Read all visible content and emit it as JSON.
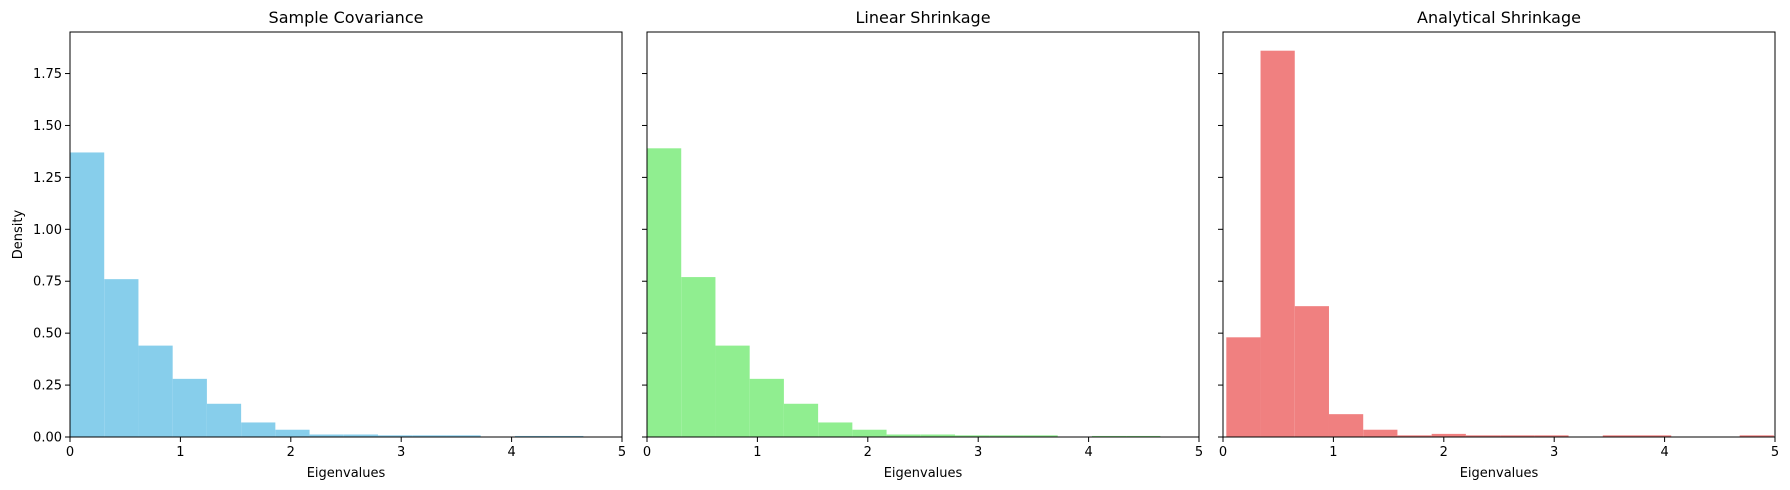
{
  "chart_data": [
    {
      "type": "bar",
      "title": "Sample Covariance",
      "xlabel": "Eigenvalues",
      "ylabel": "Density",
      "xlim": [
        0,
        5
      ],
      "ylim": [
        0,
        1.95
      ],
      "grid": false,
      "color": "#87CEEB",
      "bin_edges": [
        0,
        0.31,
        0.62,
        0.93,
        1.24,
        1.55,
        1.86,
        2.17,
        2.48,
        2.79,
        3.1,
        3.41,
        3.72,
        4.03,
        4.34,
        4.65
      ],
      "values": [
        1.37,
        0.76,
        0.44,
        0.28,
        0.16,
        0.07,
        0.035,
        0.012,
        0.012,
        0.008,
        0.008,
        0.008,
        0,
        0.005,
        0.005
      ],
      "x_ticks": [
        "0",
        "1",
        "2",
        "3",
        "4",
        "5"
      ],
      "y_ticks": [
        "0.00",
        "0.25",
        "0.50",
        "0.75",
        "1.00",
        "1.25",
        "1.50",
        "1.75"
      ]
    },
    {
      "type": "bar",
      "title": "Linear Shrinkage",
      "xlabel": "Eigenvalues",
      "ylabel": "",
      "xlim": [
        0,
        5
      ],
      "ylim": [
        0,
        1.95
      ],
      "grid": false,
      "color": "#90EE90",
      "bin_edges": [
        0,
        0.31,
        0.62,
        0.93,
        1.24,
        1.55,
        1.86,
        2.17,
        2.48,
        2.79,
        3.1,
        3.41,
        3.72,
        4.03,
        4.34,
        4.65
      ],
      "values": [
        1.39,
        0.77,
        0.44,
        0.28,
        0.16,
        0.07,
        0.035,
        0.012,
        0.012,
        0.008,
        0.008,
        0.008,
        0,
        0.005,
        0.005
      ],
      "x_ticks": [
        "0",
        "1",
        "2",
        "3",
        "4",
        "5"
      ],
      "y_ticks": [
        "",
        "",
        "",
        "",
        "",
        "",
        "",
        ""
      ]
    },
    {
      "type": "bar",
      "title": "Analytical Shrinkage",
      "xlabel": "Eigenvalues",
      "ylabel": "",
      "xlim": [
        0,
        5
      ],
      "ylim": [
        0,
        1.95
      ],
      "grid": false,
      "color": "#F08080",
      "bin_edges": [
        0.03,
        0.34,
        0.65,
        0.96,
        1.27,
        1.58,
        1.89,
        2.2,
        2.51,
        2.82,
        3.13,
        3.44,
        3.75,
        4.06,
        4.37,
        4.68,
        4.99
      ],
      "values": [
        0.48,
        1.86,
        0.63,
        0.11,
        0.035,
        0.008,
        0.015,
        0.008,
        0.008,
        0.008,
        0,
        0.008,
        0.008,
        0,
        0,
        0.008
      ],
      "x_ticks": [
        "0",
        "1",
        "2",
        "3",
        "4",
        "5"
      ],
      "y_ticks": [
        "",
        "",
        "",
        "",
        "",
        "",
        "",
        ""
      ]
    }
  ]
}
